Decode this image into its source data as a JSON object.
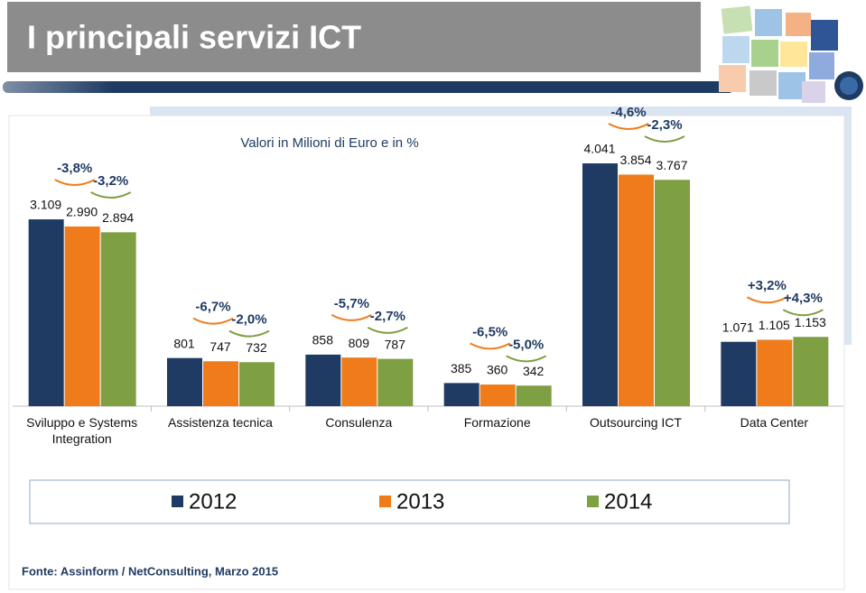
{
  "chart_data": {
    "type": "bar",
    "title": "I principali servizi ICT",
    "subtitle": "Valori in Milioni di Euro e in %",
    "source": "Fonte: Assinform / NetConsulting, Marzo  2015",
    "categories": [
      "Sviluppo e Systems Integration",
      "Assistenza tecnica",
      "Consulenza",
      "Formazione",
      "Outsourcing ICT",
      "Data Center"
    ],
    "series": [
      {
        "name": "2012",
        "color": "#1f3b63",
        "values": [
          3109,
          801,
          858,
          385,
          4041,
          1071
        ],
        "value_labels": [
          "3.109",
          "801",
          "858",
          "385",
          "4.041",
          "1.071"
        ]
      },
      {
        "name": "2013",
        "color": "#f07b1a",
        "values": [
          2990,
          747,
          809,
          360,
          3854,
          1105
        ],
        "value_labels": [
          "2.990",
          "747",
          "809",
          "360",
          "3.854",
          "1.105"
        ]
      },
      {
        "name": "2014",
        "color": "#7f9f43",
        "values": [
          2894,
          732,
          787,
          342,
          3767,
          1153
        ],
        "value_labels": [
          "2.894",
          "732",
          "787",
          "342",
          "3.767",
          "1.153"
        ]
      }
    ],
    "annotations": [
      [
        "-3,8%",
        "-3,2%"
      ],
      [
        "-6,7%",
        "-2,0%"
      ],
      [
        "-5,7%",
        "-2,7%"
      ],
      [
        "-6,5%",
        "-5,0%"
      ],
      [
        "-4,6%",
        "-2,3%"
      ],
      [
        "+3,2%",
        "+4,3%"
      ]
    ]
  }
}
